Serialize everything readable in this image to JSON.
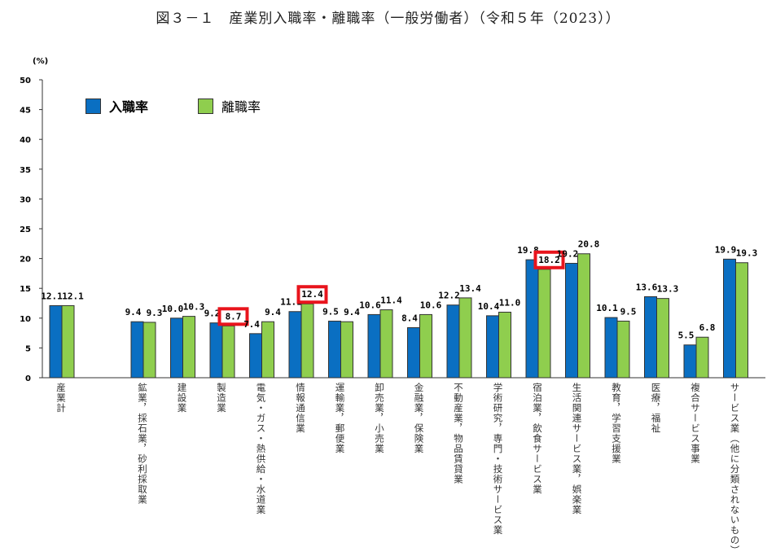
{
  "title": "図３－１　産業別入職率・離職率（一般労働者）（令和５年（2023））",
  "colors": {
    "entry": "#0a6fc2",
    "exit": "#8fce4e",
    "highlight": "#e8141c"
  },
  "chart_data": {
    "type": "bar",
    "title": "図３－１　産業別入職率・離職率（一般労働者）（令和５年（2023））",
    "ylabel": "(%)",
    "ylim": [
      0,
      50
    ],
    "yticks": [
      0,
      5,
      10,
      15,
      20,
      25,
      30,
      35,
      40,
      45,
      50
    ],
    "grid": false,
    "legend_position": "top-left",
    "categories": [
      "産業計",
      "鉱業，採石業，砂利採取業",
      "建設業",
      "製造業",
      "電気・ガス・熱供給・水道業",
      "情報通信業",
      "運輸業，郵便業",
      "卸売業，小売業",
      "金融業，保険業",
      "不動産業，物品賃貸業",
      "学術研究，専門・技術サービス業",
      "宿泊業，飲食サービス業",
      "生活関連サービス業，娯楽業",
      "教育，学習支援業",
      "医療，福祉",
      "複合サービス事業",
      "サービス業（他に分類されないもの）"
    ],
    "series": [
      {
        "name": "入職率",
        "values": [
          12.1,
          9.4,
          10.0,
          9.2,
          7.4,
          11.1,
          9.5,
          10.6,
          8.4,
          12.2,
          10.4,
          19.8,
          19.2,
          10.1,
          13.6,
          5.5,
          19.9
        ]
      },
      {
        "name": "離職率",
        "values": [
          12.1,
          9.3,
          10.3,
          8.7,
          9.4,
          12.4,
          9.4,
          11.4,
          10.6,
          13.4,
          11.0,
          18.2,
          20.8,
          9.5,
          13.3,
          6.8,
          19.3
        ]
      }
    ],
    "highlighted_exit_labels": [
      "製造業",
      "情報通信業",
      "宿泊業，飲食サービス業"
    ]
  }
}
